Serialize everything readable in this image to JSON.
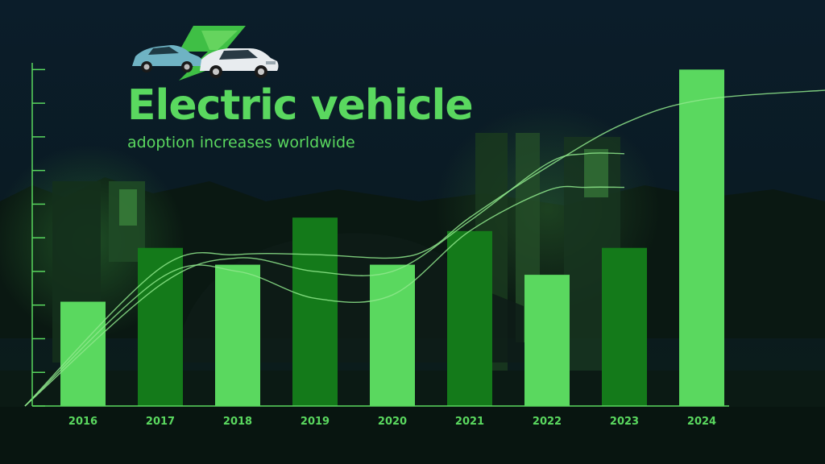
{
  "title": "Electric vehicle",
  "subtitle": "adoption increases worldwide",
  "colors": {
    "background": "#07141c",
    "accent": "#5ad85f",
    "accent_dark": "#147a1a",
    "text": "#5ad85f"
  },
  "logo": {
    "icon": "electric-car-icon"
  },
  "chart_data": {
    "type": "bar",
    "title": "Electric vehicle",
    "subtitle": "adoption increases worldwide",
    "categories": [
      "2016",
      "2017",
      "2018",
      "2019",
      "2020",
      "2021",
      "2022",
      "2023",
      "2024"
    ],
    "values": [
      31,
      47,
      42,
      56,
      42,
      52,
      39,
      47,
      100
    ],
    "bar_colors": [
      "#5ad85f",
      "#147a1a",
      "#5ad85f",
      "#147a1a",
      "#5ad85f",
      "#147a1a",
      "#5ad85f",
      "#147a1a",
      "#5ad85f"
    ],
    "ylim": [
      0,
      102
    ],
    "y_ticks": [
      0,
      10,
      20,
      30,
      40,
      50,
      60,
      70,
      80,
      90,
      100
    ],
    "trend_lines": [
      {
        "x": [
          -0.75,
          1,
          2,
          3,
          4,
          5,
          6,
          6.5,
          7.0
        ],
        "y": [
          0,
          36,
          44,
          40,
          40,
          55,
          72,
          75,
          75
        ]
      },
      {
        "x": [
          -0.75,
          1,
          2,
          3,
          4,
          5,
          6,
          6.5,
          7.0
        ],
        "y": [
          0,
          38,
          40,
          32,
          33,
          52,
          64,
          65,
          65
        ]
      },
      {
        "x": [
          -0.75,
          1,
          2,
          3,
          4,
          4.5,
          5,
          6,
          7,
          8,
          9.7
        ],
        "y": [
          0,
          41,
          45,
          45,
          44,
          47,
          56,
          71,
          84,
          91,
          94
        ]
      }
    ],
    "xlabel": "",
    "ylabel": "",
    "grid": false,
    "legend": "none"
  }
}
